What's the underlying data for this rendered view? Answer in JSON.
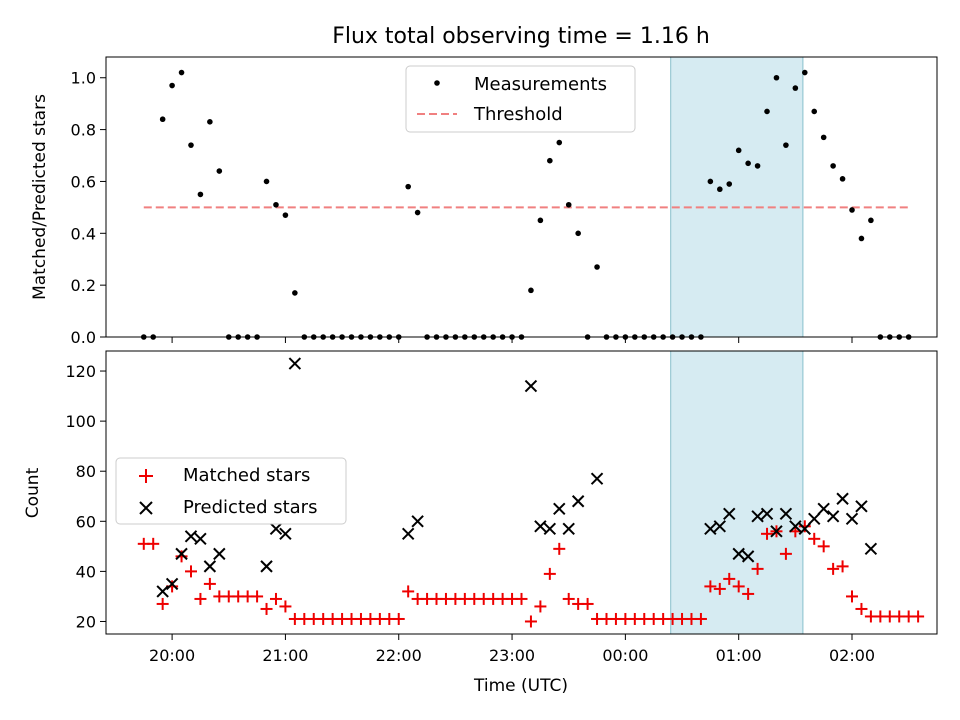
{
  "title": "Flux total observing time = 1.16 h",
  "colors": {
    "measurement": "#000000",
    "threshold": "#f08080",
    "matched": "#ee0000",
    "predicted": "#000000",
    "span": "#add8e6"
  },
  "chart_data": [
    {
      "type": "scatter",
      "ylabel": "Matched/Predicted stars",
      "xlabel": "",
      "xlim": [
        "19:25",
        "02:45"
      ],
      "ylim": [
        0,
        1.08
      ],
      "xticks": [
        "20:00",
        "21:00",
        "22:00",
        "23:00",
        "00:00",
        "01:00",
        "02:00"
      ],
      "yticks": [
        "0.0",
        "0.2",
        "0.4",
        "0.6",
        "0.8",
        "1.0"
      ],
      "legend_position": "top-center",
      "highlight_span": [
        "00:24",
        "01:34"
      ],
      "series": [
        {
          "name": "Measurements",
          "marker": "dot",
          "points": [
            [
              "19:45",
              0
            ],
            [
              "19:50",
              0
            ],
            [
              "19:55",
              0.84
            ],
            [
              "20:00",
              0.97
            ],
            [
              "20:05",
              1.02
            ],
            [
              "20:10",
              0.74
            ],
            [
              "20:15",
              0.55
            ],
            [
              "20:20",
              0.83
            ],
            [
              "20:25",
              0.64
            ],
            [
              "20:30",
              0
            ],
            [
              "20:35",
              0
            ],
            [
              "20:40",
              0
            ],
            [
              "20:45",
              0
            ],
            [
              "20:50",
              0.6
            ],
            [
              "20:55",
              0.51
            ],
            [
              "21:00",
              0.47
            ],
            [
              "21:05",
              0.17
            ],
            [
              "21:10",
              0
            ],
            [
              "21:15",
              0
            ],
            [
              "21:20",
              0
            ],
            [
              "21:25",
              0
            ],
            [
              "21:30",
              0
            ],
            [
              "21:35",
              0
            ],
            [
              "21:40",
              0
            ],
            [
              "21:45",
              0
            ],
            [
              "21:50",
              0
            ],
            [
              "21:55",
              0
            ],
            [
              "22:00",
              0
            ],
            [
              "22:05",
              0.58
            ],
            [
              "22:10",
              0.48
            ],
            [
              "22:15",
              0
            ],
            [
              "22:20",
              0
            ],
            [
              "22:25",
              0
            ],
            [
              "22:30",
              0
            ],
            [
              "22:35",
              0
            ],
            [
              "22:40",
              0
            ],
            [
              "22:45",
              0
            ],
            [
              "22:50",
              0
            ],
            [
              "22:55",
              0
            ],
            [
              "23:00",
              0
            ],
            [
              "23:05",
              0
            ],
            [
              "23:10",
              0.18
            ],
            [
              "23:15",
              0.45
            ],
            [
              "23:20",
              0.68
            ],
            [
              "23:25",
              0.75
            ],
            [
              "23:30",
              0.51
            ],
            [
              "23:35",
              0.4
            ],
            [
              "23:40",
              0
            ],
            [
              "23:45",
              0.27
            ],
            [
              "23:50",
              0
            ],
            [
              "23:55",
              0
            ],
            [
              "00:00",
              0
            ],
            [
              "00:05",
              0
            ],
            [
              "00:10",
              0
            ],
            [
              "00:15",
              0
            ],
            [
              "00:20",
              0
            ],
            [
              "00:25",
              0
            ],
            [
              "00:30",
              0
            ],
            [
              "00:35",
              0
            ],
            [
              "00:40",
              0
            ],
            [
              "00:45",
              0.6
            ],
            [
              "00:50",
              0.57
            ],
            [
              "00:55",
              0.59
            ],
            [
              "01:00",
              0.72
            ],
            [
              "01:05",
              0.67
            ],
            [
              "01:10",
              0.66
            ],
            [
              "01:15",
              0.87
            ],
            [
              "01:20",
              1.0
            ],
            [
              "01:25",
              0.74
            ],
            [
              "01:30",
              0.96
            ],
            [
              "01:35",
              1.02
            ],
            [
              "01:40",
              0.87
            ],
            [
              "01:45",
              0.77
            ],
            [
              "01:50",
              0.66
            ],
            [
              "01:55",
              0.61
            ],
            [
              "02:00",
              0.49
            ],
            [
              "02:05",
              0.38
            ],
            [
              "02:10",
              0.45
            ],
            [
              "02:15",
              0
            ],
            [
              "02:20",
              0
            ],
            [
              "02:25",
              0
            ],
            [
              "02:30",
              0
            ]
          ]
        },
        {
          "name": "Threshold",
          "style": "dashed",
          "points": [
            [
              "19:45",
              0.5
            ],
            [
              "02:30",
              0.5
            ]
          ]
        }
      ]
    },
    {
      "type": "scatter",
      "ylabel": "Count",
      "xlabel": "Time (UTC)",
      "xlim": [
        "19:25",
        "02:45"
      ],
      "ylim": [
        15,
        128
      ],
      "xticks": [
        "20:00",
        "21:00",
        "22:00",
        "23:00",
        "00:00",
        "01:00",
        "02:00"
      ],
      "yticks": [
        "20",
        "40",
        "60",
        "80",
        "100",
        "120"
      ],
      "legend_position": "center-left",
      "highlight_span": [
        "00:24",
        "01:34"
      ],
      "series": [
        {
          "name": "Matched stars",
          "marker": "plus",
          "points": [
            [
              "19:45",
              51
            ],
            [
              "19:50",
              51
            ],
            [
              "19:55",
              27
            ],
            [
              "20:00",
              34
            ],
            [
              "20:05",
              46
            ],
            [
              "20:10",
              40
            ],
            [
              "20:15",
              29
            ],
            [
              "20:20",
              35
            ],
            [
              "20:25",
              30
            ],
            [
              "20:30",
              30
            ],
            [
              "20:35",
              30
            ],
            [
              "20:40",
              30
            ],
            [
              "20:45",
              30
            ],
            [
              "20:50",
              25
            ],
            [
              "20:55",
              29
            ],
            [
              "21:00",
              26
            ],
            [
              "21:05",
              21
            ],
            [
              "21:10",
              21
            ],
            [
              "21:15",
              21
            ],
            [
              "21:20",
              21
            ],
            [
              "21:25",
              21
            ],
            [
              "21:30",
              21
            ],
            [
              "21:35",
              21
            ],
            [
              "21:40",
              21
            ],
            [
              "21:45",
              21
            ],
            [
              "21:50",
              21
            ],
            [
              "21:55",
              21
            ],
            [
              "22:00",
              21
            ],
            [
              "22:05",
              32
            ],
            [
              "22:10",
              29
            ],
            [
              "22:15",
              29
            ],
            [
              "22:20",
              29
            ],
            [
              "22:25",
              29
            ],
            [
              "22:30",
              29
            ],
            [
              "22:35",
              29
            ],
            [
              "22:40",
              29
            ],
            [
              "22:45",
              29
            ],
            [
              "22:50",
              29
            ],
            [
              "22:55",
              29
            ],
            [
              "23:00",
              29
            ],
            [
              "23:05",
              29
            ],
            [
              "23:10",
              20
            ],
            [
              "23:15",
              26
            ],
            [
              "23:20",
              39
            ],
            [
              "23:25",
              49
            ],
            [
              "23:30",
              29
            ],
            [
              "23:35",
              27
            ],
            [
              "23:40",
              27
            ],
            [
              "23:45",
              21
            ],
            [
              "23:50",
              21
            ],
            [
              "23:55",
              21
            ],
            [
              "00:00",
              21
            ],
            [
              "00:05",
              21
            ],
            [
              "00:10",
              21
            ],
            [
              "00:15",
              21
            ],
            [
              "00:20",
              21
            ],
            [
              "00:25",
              21
            ],
            [
              "00:30",
              21
            ],
            [
              "00:35",
              21
            ],
            [
              "00:40",
              21
            ],
            [
              "00:45",
              34
            ],
            [
              "00:50",
              33
            ],
            [
              "00:55",
              37
            ],
            [
              "01:00",
              34
            ],
            [
              "01:05",
              31
            ],
            [
              "01:10",
              41
            ],
            [
              "01:15",
              55
            ],
            [
              "01:20",
              56
            ],
            [
              "01:25",
              47
            ],
            [
              "01:30",
              56
            ],
            [
              "01:35",
              58
            ],
            [
              "01:40",
              53
            ],
            [
              "01:45",
              50
            ],
            [
              "01:50",
              41
            ],
            [
              "01:55",
              42
            ],
            [
              "02:00",
              30
            ],
            [
              "02:05",
              25
            ],
            [
              "02:10",
              22
            ],
            [
              "02:15",
              22
            ],
            [
              "02:20",
              22
            ],
            [
              "02:25",
              22
            ],
            [
              "02:30",
              22
            ],
            [
              "02:35",
              22
            ]
          ]
        },
        {
          "name": "Predicted stars",
          "marker": "x",
          "points": [
            [
              "19:55",
              32
            ],
            [
              "20:00",
              35
            ],
            [
              "20:05",
              47
            ],
            [
              "20:10",
              54
            ],
            [
              "20:15",
              53
            ],
            [
              "20:20",
              42
            ],
            [
              "20:25",
              47
            ],
            [
              "20:50",
              42
            ],
            [
              "20:55",
              57
            ],
            [
              "21:00",
              55
            ],
            [
              "21:05",
              123
            ],
            [
              "22:05",
              55
            ],
            [
              "22:10",
              60
            ],
            [
              "23:10",
              114
            ],
            [
              "23:15",
              58
            ],
            [
              "23:20",
              57
            ],
            [
              "23:25",
              65
            ],
            [
              "23:30",
              57
            ],
            [
              "23:35",
              68
            ],
            [
              "23:45",
              77
            ],
            [
              "00:45",
              57
            ],
            [
              "00:50",
              58
            ],
            [
              "00:55",
              63
            ],
            [
              "01:00",
              47
            ],
            [
              "01:05",
              46
            ],
            [
              "01:10",
              62
            ],
            [
              "01:15",
              63
            ],
            [
              "01:20",
              56
            ],
            [
              "01:25",
              63
            ],
            [
              "01:30",
              58
            ],
            [
              "01:35",
              57
            ],
            [
              "01:40",
              61
            ],
            [
              "01:45",
              65
            ],
            [
              "01:50",
              62
            ],
            [
              "01:55",
              69
            ],
            [
              "02:00",
              61
            ],
            [
              "02:05",
              66
            ],
            [
              "02:10",
              49
            ]
          ]
        }
      ]
    }
  ]
}
